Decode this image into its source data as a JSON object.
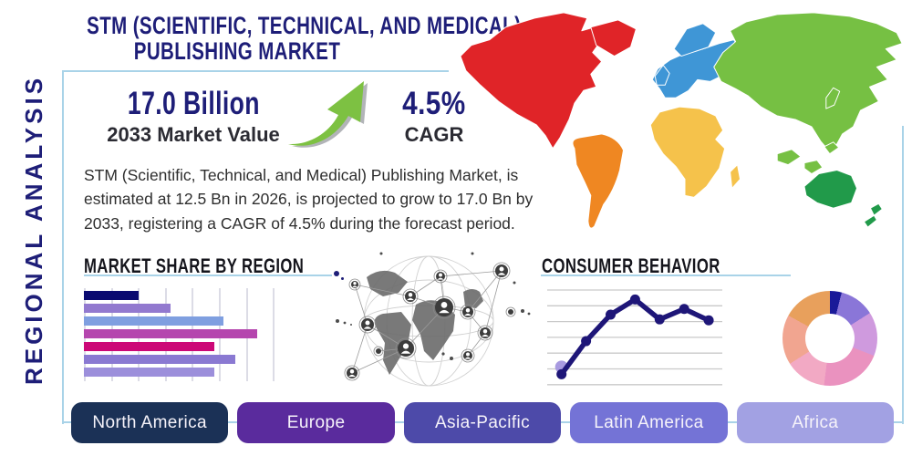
{
  "header": {
    "title_line1": "STM (SCIENTIFIC, TECHNICAL, AND MEDICAL)",
    "title_line2": "PUBLISHING MARKET"
  },
  "side_label": "REGIONAL ANALYSIS",
  "stats": {
    "market_value": "17.0 Billion",
    "market_value_label": "2033 Market Value",
    "cagr_value": "4.5%",
    "cagr_label": "CAGR"
  },
  "description": "STM (Scientific, Technical, and Medical) Publishing Market, is estimated at 12.5 Bn in 2026, is projected to grow to 17.0 Bn by 2033, registering a CAGR of 4.5% during the forecast period.",
  "colors": {
    "accent_navy": "#1e1e78",
    "light_blue_line": "#a9d3e8",
    "arrow_green": "#7dc142",
    "text_dark": "#2b2b33"
  },
  "regions_legend": [
    {
      "label": "North America",
      "color": "#1b3156"
    },
    {
      "label": "Europe",
      "color": "#5a2b9d"
    },
    {
      "label": "Asia-Pacific",
      "color": "#4d4aa9"
    },
    {
      "label": "Latin America",
      "color": "#7473d6"
    },
    {
      "label": "Africa",
      "color": "#a2a1e3"
    }
  ],
  "map": {
    "region_colors": {
      "north_america": "#e02428",
      "south_america": "#ef8722",
      "europe": "#3f96d6",
      "africa": "#f5c24b",
      "asia": "#76c043",
      "oceania": "#219a4a"
    }
  },
  "chart_data": [
    {
      "type": "bar",
      "title": "MARKET SHARE BY REGION",
      "orientation": "horizontal",
      "categories": [
        "",
        "",
        "",
        "",
        "",
        "",
        ""
      ],
      "values": [
        29,
        46,
        74,
        92,
        69,
        80,
        69
      ],
      "value_unit": "percent-of-axis",
      "bar_colors": [
        "#0a0a70",
        "#9279cf",
        "#7f9fe0",
        "#b546ae",
        "#cc0877",
        "#8a79d2",
        "#9c8fdb"
      ],
      "gridlines": 8,
      "xlim": [
        0,
        100
      ],
      "note": "bars are unlabeled in the infographic"
    },
    {
      "type": "line",
      "title": "CONSUMER BEHAVIOR",
      "x": [
        1,
        2,
        3,
        4,
        5,
        6,
        7
      ],
      "values": [
        11,
        46,
        74,
        90,
        69,
        80,
        68
      ],
      "ylim": [
        0,
        100
      ],
      "gridlines": 7,
      "line_color": "#1e1678",
      "start_marker_color": "#a89ae0",
      "note": "axes are unlabeled in the infographic"
    },
    {
      "type": "pie",
      "subtype": "donut",
      "slices": [
        {
          "value": 4,
          "color": "#1a1a99"
        },
        {
          "value": 12,
          "color": "#8a76d8"
        },
        {
          "value": 15,
          "color": "#cf9ade"
        },
        {
          "value": 21,
          "color": "#ea92bf"
        },
        {
          "value": 14,
          "color": "#f2a9c4"
        },
        {
          "value": 17,
          "color": "#f1a590"
        },
        {
          "value": 17,
          "color": "#e8a05c"
        }
      ],
      "note": "slices are unlabeled in the infographic"
    }
  ]
}
